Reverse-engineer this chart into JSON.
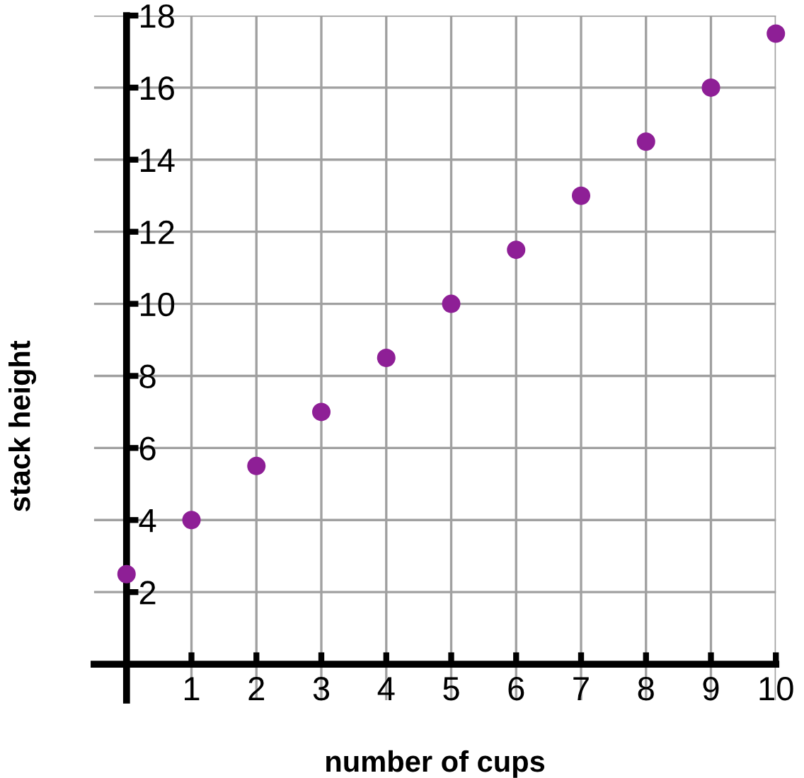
{
  "chart_data": {
    "type": "scatter",
    "xlabel": "number of cups",
    "ylabel": "stack height",
    "x": [
      0,
      1,
      2,
      3,
      4,
      5,
      6,
      7,
      8,
      9,
      10
    ],
    "series": [
      {
        "color": "#8e1f96",
        "values": [
          2.5,
          4,
          5.5,
          7,
          8.5,
          10,
          11.5,
          13,
          14.5,
          16,
          17.5
        ]
      }
    ],
    "xlim": [
      -0.5,
      10
    ],
    "ylim": [
      -1,
      18
    ],
    "xticks": [
      1,
      2,
      3,
      4,
      5,
      6,
      7,
      8,
      9,
      10
    ],
    "yticks": [
      2,
      4,
      6,
      8,
      10,
      12,
      14,
      16,
      18
    ],
    "grid": true,
    "marker": "circle"
  }
}
